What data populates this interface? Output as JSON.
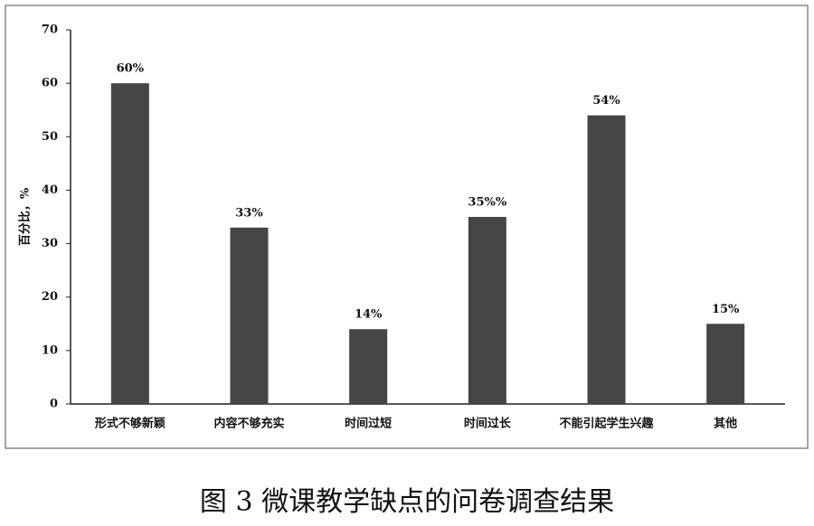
{
  "chart_data": {
    "type": "bar",
    "y_label": "百分比，%",
    "caption": "图 3  微课教学缺点的问卷调查结果",
    "categories": [
      "形式不够新颖",
      "内容不够充实",
      "时间过短",
      "时间过长",
      "不能引起学生兴趣",
      "其他"
    ],
    "values": [
      60,
      33,
      14,
      35,
      54,
      15
    ],
    "value_labels": [
      "60%",
      "33%",
      "14%",
      "35%%",
      "54%",
      "15%"
    ],
    "color": "#454545",
    "ylim": [
      0,
      70
    ],
    "yticks": [
      0,
      10,
      20,
      30,
      40,
      50,
      60,
      70
    ],
    "grid": false
  }
}
